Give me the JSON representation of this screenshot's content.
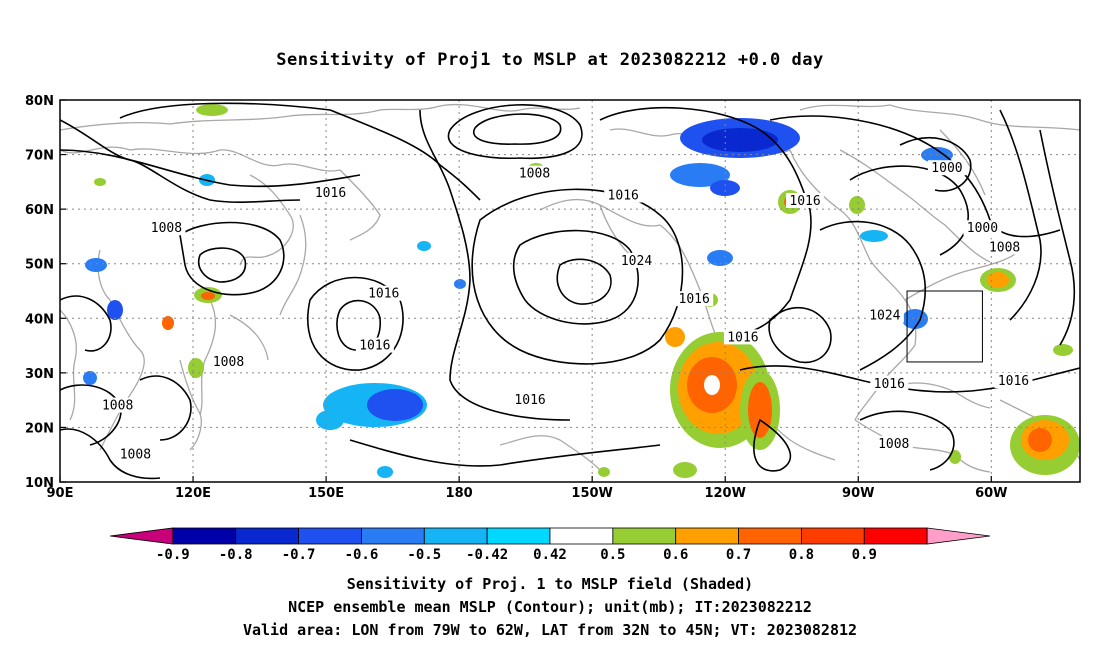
{
  "title": "Sensitivity of Proj1 to MSLP at 2023082212 +0.0 day",
  "map": {
    "lat_ticks": [
      "80N",
      "70N",
      "60N",
      "50N",
      "40N",
      "30N",
      "20N",
      "10N"
    ],
    "lon_ticks": [
      "90E",
      "120E",
      "150E",
      "180",
      "150W",
      "120W",
      "90W",
      "60W"
    ],
    "contour_labels": [
      {
        "text": "1008",
        "lon": -163,
        "lat": 66.5
      },
      {
        "text": "1016",
        "lon": 151,
        "lat": 63
      },
      {
        "text": "1016",
        "lon": -143,
        "lat": 62.5
      },
      {
        "text": "1016",
        "lon": -102,
        "lat": 61.5
      },
      {
        "text": "1000",
        "lon": -70,
        "lat": 67.5
      },
      {
        "text": "1000",
        "lon": -62,
        "lat": 56.5
      },
      {
        "text": "1008",
        "lon": -57,
        "lat": 53
      },
      {
        "text": "1008",
        "lon": 114,
        "lat": 56.5
      },
      {
        "text": "1024",
        "lon": -140,
        "lat": 50.5
      },
      {
        "text": "1016",
        "lon": -127,
        "lat": 43.5
      },
      {
        "text": "1016",
        "lon": 163,
        "lat": 44.5
      },
      {
        "text": "1016",
        "lon": 161,
        "lat": 35
      },
      {
        "text": "1024",
        "lon": -84,
        "lat": 40.5
      },
      {
        "text": "1016",
        "lon": -116,
        "lat": 36.5
      },
      {
        "text": "1008",
        "lon": 128,
        "lat": 32
      },
      {
        "text": "1008",
        "lon": 103,
        "lat": 24
      },
      {
        "text": "1008",
        "lon": 107,
        "lat": 15
      },
      {
        "text": "1016",
        "lon": -164,
        "lat": 25
      },
      {
        "text": "1016",
        "lon": -83,
        "lat": 28
      },
      {
        "text": "1008",
        "lon": -82,
        "lat": 17
      },
      {
        "text": "1016",
        "lon": -55,
        "lat": 28.5
      }
    ],
    "valid_area": {
      "lon_min": -79,
      "lon_max": -62,
      "lat_min": 32,
      "lat_max": 45
    }
  },
  "colorbar": {
    "labels": [
      "-0.9",
      "-0.8",
      "-0.7",
      "-0.6",
      "-0.5",
      "-0.42",
      "0.42",
      "0.5",
      "0.6",
      "0.7",
      "0.8",
      "0.9"
    ],
    "colors": [
      "#c8007a",
      "#0000a8",
      "#0a28d0",
      "#1f50f0",
      "#2a7cf5",
      "#14b4f5",
      "#00d8ff",
      "#ffffff",
      "#96cd32",
      "#ffa000",
      "#ff6400",
      "#ff3c00",
      "#ff0000",
      "#ff9ec8"
    ]
  },
  "notes": {
    "line1": "Sensitivity of Proj. 1 to MSLP field (Shaded)",
    "line2": "NCEP ensemble mean MSLP (Contour); unit(mb); IT:2023082212",
    "line3": "Valid area: LON from 79W to 62W, LAT from 32N to 45N; VT: 2023082812"
  }
}
